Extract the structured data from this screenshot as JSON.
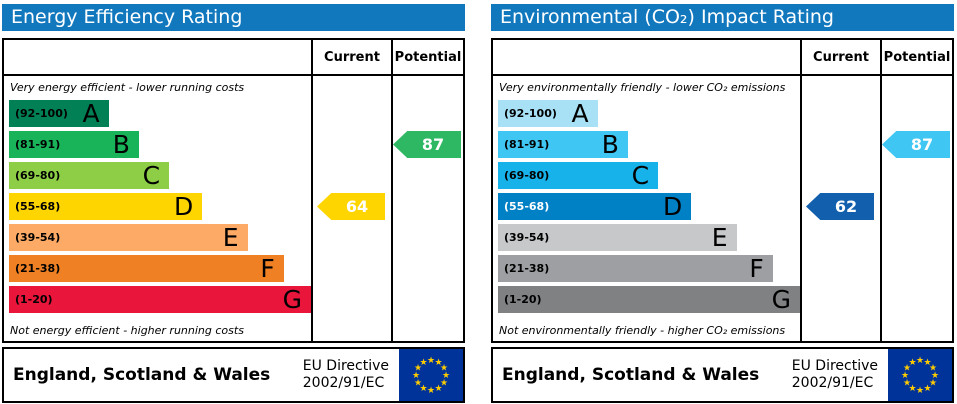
{
  "panels": [
    {
      "id": "energy-efficiency",
      "title": "Energy Efficiency Rating",
      "title_bg": "#1278be",
      "header": {
        "current": "Current",
        "potential": "Potential"
      },
      "top_note": "Very energy efficient - lower running costs",
      "bottom_note": "Not energy efficient - higher running costs",
      "bands": [
        {
          "range": "(92-100)",
          "letter": "A",
          "color": "#008054",
          "width_pct": 33,
          "range_color": "#000000",
          "letter_color": "#000000"
        },
        {
          "range": "(81-91)",
          "letter": "B",
          "color": "#19b459",
          "width_pct": 43,
          "range_color": "#000000",
          "letter_color": "#000000"
        },
        {
          "range": "(69-80)",
          "letter": "C",
          "color": "#8dce46",
          "width_pct": 53,
          "range_color": "#000000",
          "letter_color": "#000000"
        },
        {
          "range": "(55-68)",
          "letter": "D",
          "color": "#ffd500",
          "width_pct": 64,
          "range_color": "#000000",
          "letter_color": "#000000"
        },
        {
          "range": "(39-54)",
          "letter": "E",
          "color": "#fcaa65",
          "width_pct": 79,
          "range_color": "#000000",
          "letter_color": "#000000"
        },
        {
          "range": "(21-38)",
          "letter": "F",
          "color": "#ef8023",
          "width_pct": 91,
          "range_color": "#000000",
          "letter_color": "#000000"
        },
        {
          "range": "(1-20)",
          "letter": "G",
          "color": "#e9153b",
          "width_pct": 100,
          "range_color": "#000000",
          "letter_color": "#000000"
        }
      ],
      "current": {
        "value": "64",
        "band": "D",
        "band_index": 3,
        "color": "#ffd500",
        "text_color": "#ffffff"
      },
      "potential": {
        "value": "87",
        "band": "B",
        "band_index": 1,
        "color": "#2eb863",
        "text_color": "#ffffff"
      },
      "footer": {
        "region": "England, Scotland & Wales",
        "directive_line1": "EU Directive",
        "directive_line2": "2002/91/EC"
      }
    },
    {
      "id": "environmental-co2",
      "title": "Environmental (CO₂) Impact Rating",
      "title_bg": "#1278be",
      "header": {
        "current": "Current",
        "potential": "Potential"
      },
      "top_note": "Very environmentally friendly - lower CO₂ emissions",
      "bottom_note": "Not environmentally friendly - higher CO₂ emissions",
      "bands": [
        {
          "range": "(92-100)",
          "letter": "A",
          "color": "#a8e1f5",
          "width_pct": 33,
          "range_color": "#000000",
          "letter_color": "#000000"
        },
        {
          "range": "(81-91)",
          "letter": "B",
          "color": "#3fc6f2",
          "width_pct": 43,
          "range_color": "#000000",
          "letter_color": "#000000"
        },
        {
          "range": "(69-80)",
          "letter": "C",
          "color": "#17b2e9",
          "width_pct": 53,
          "range_color": "#000000",
          "letter_color": "#000000"
        },
        {
          "range": "(55-68)",
          "letter": "D",
          "color": "#0080c5",
          "width_pct": 64,
          "range_color": "#ffffff",
          "letter_color": "#000000"
        },
        {
          "range": "(39-54)",
          "letter": "E",
          "color": "#c7c8ca",
          "width_pct": 79,
          "range_color": "#000000",
          "letter_color": "#000000"
        },
        {
          "range": "(21-38)",
          "letter": "F",
          "color": "#9d9fa2",
          "width_pct": 91,
          "range_color": "#000000",
          "letter_color": "#000000"
        },
        {
          "range": "(1-20)",
          "letter": "G",
          "color": "#7f8183",
          "width_pct": 100,
          "range_color": "#000000",
          "letter_color": "#000000"
        }
      ],
      "current": {
        "value": "62",
        "band": "D",
        "band_index": 3,
        "color": "#115fad",
        "text_color": "#ffffff"
      },
      "potential": {
        "value": "87",
        "band": "B",
        "band_index": 1,
        "color": "#3fc6f2",
        "text_color": "#ffffff"
      },
      "footer": {
        "region": "England, Scotland & Wales",
        "directive_line1": "EU Directive",
        "directive_line2": "2002/91/EC"
      }
    }
  ],
  "eu_flag": {
    "background": "#003399",
    "star_color": "#ffcc00",
    "star_glyph": "★"
  },
  "chart_data": [
    {
      "type": "bar",
      "title": "Energy Efficiency Rating",
      "categories": [
        "A (92-100)",
        "B (81-91)",
        "C (69-80)",
        "D (55-68)",
        "E (39-54)",
        "F (21-38)",
        "G (1-20)"
      ],
      "series": [
        {
          "name": "Current",
          "value": 64,
          "band": "D"
        },
        {
          "name": "Potential",
          "value": 87,
          "band": "B"
        }
      ],
      "scale": [
        1,
        100
      ],
      "annotations": [
        "Very energy efficient - lower running costs",
        "Not energy efficient - higher running costs"
      ],
      "footer": "England, Scotland & Wales | EU Directive 2002/91/EC"
    },
    {
      "type": "bar",
      "title": "Environmental (CO₂) Impact Rating",
      "categories": [
        "A (92-100)",
        "B (81-91)",
        "C (69-80)",
        "D (55-68)",
        "E (39-54)",
        "F (21-38)",
        "G (1-20)"
      ],
      "series": [
        {
          "name": "Current",
          "value": 62,
          "band": "D"
        },
        {
          "name": "Potential",
          "value": 87,
          "band": "B"
        }
      ],
      "scale": [
        1,
        100
      ],
      "annotations": [
        "Very environmentally friendly - lower CO₂ emissions",
        "Not environmentally friendly - higher CO₂ emissions"
      ],
      "footer": "England, Scotland & Wales | EU Directive 2002/91/EC"
    }
  ]
}
